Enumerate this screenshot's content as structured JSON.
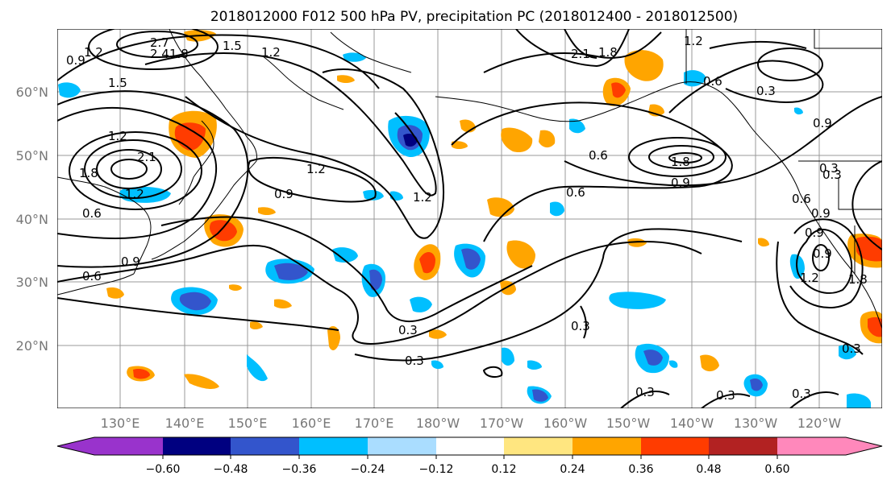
{
  "title": "2018012000 F012 500 hPa PV, precipitation PC (2018012400 - 2018012500)",
  "lat_labels": [
    "60°N",
    "50°N",
    "40°N",
    "30°N",
    "20°N"
  ],
  "lon_labels": [
    "130°E",
    "140°E",
    "150°E",
    "160°E",
    "170°E",
    "180°W",
    "170°W",
    "160°W",
    "150°W",
    "140°W",
    "130°W",
    "120°W"
  ],
  "colorbar": {
    "colors": [
      "#9933cc",
      "#000080",
      "#3355cc",
      "#00bfff",
      "#aaddff",
      "#ffffff",
      "#ffe680",
      "#ffa500",
      "#ff3c00",
      "#b22222",
      "#ff88bb"
    ],
    "ticks": [
      "−0.60",
      "−0.48",
      "−0.36",
      "−0.24",
      "−0.12",
      "0.12",
      "0.24",
      "0.36",
      "0.48",
      "0.60"
    ]
  },
  "contour_labels": [
    "0.9",
    "1.2",
    "2.7",
    "2.4",
    "1.8",
    "1.5",
    "1.2",
    "1.5",
    "1.2",
    "2.1",
    "1.8",
    "1.2",
    "0.6",
    "0.3",
    "0.9",
    "1.8",
    "1.2",
    "2.1",
    "1.2",
    "0.9",
    "1.2",
    "0.6",
    "1.8",
    "0.9",
    "0.6",
    "0.6",
    "0.3",
    "0.9",
    "0.6",
    "1.8",
    "1.2",
    "0.9",
    "0.9",
    "0.6",
    "0.9",
    "0.3",
    "0.3",
    "0.3",
    "0.3",
    "0.3",
    "0.3",
    "0.3",
    "0.3"
  ]
}
